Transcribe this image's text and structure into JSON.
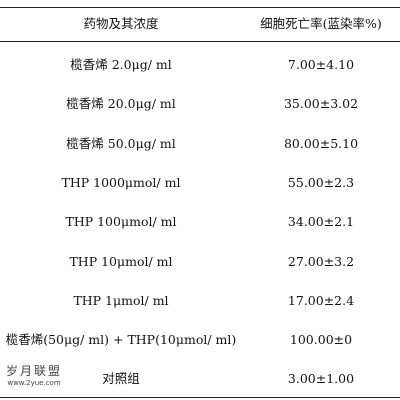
{
  "table": {
    "header": [
      "药物及其浓度",
      "细胞死亡率(蓝染率%)"
    ],
    "rows": [
      [
        "榄香烯 2.0μg/ ml",
        "7.00±4.10"
      ],
      [
        "榄香烯 20.0μg/ ml",
        "35.00±3.02"
      ],
      [
        "榄香烯 50.0μg/ ml",
        "80.00±5.10"
      ],
      [
        "THP 1000μmol/ ml",
        "55.00±2.3"
      ],
      [
        "THP 100μmol/ ml",
        "34.00±2.1"
      ],
      [
        "THP 10μmol/ ml",
        "27.00±3.2"
      ],
      [
        "THP 1μmol/ ml",
        "17.00±2.4"
      ],
      [
        "榄香烯(50μg/ ml) + THP(10μmol/ ml)",
        "100.00±0"
      ],
      [
        "对照组",
        "3.00±1.00"
      ]
    ]
  },
  "watermark": [
    "岁月联盟",
    "www.2yue.com"
  ]
}
